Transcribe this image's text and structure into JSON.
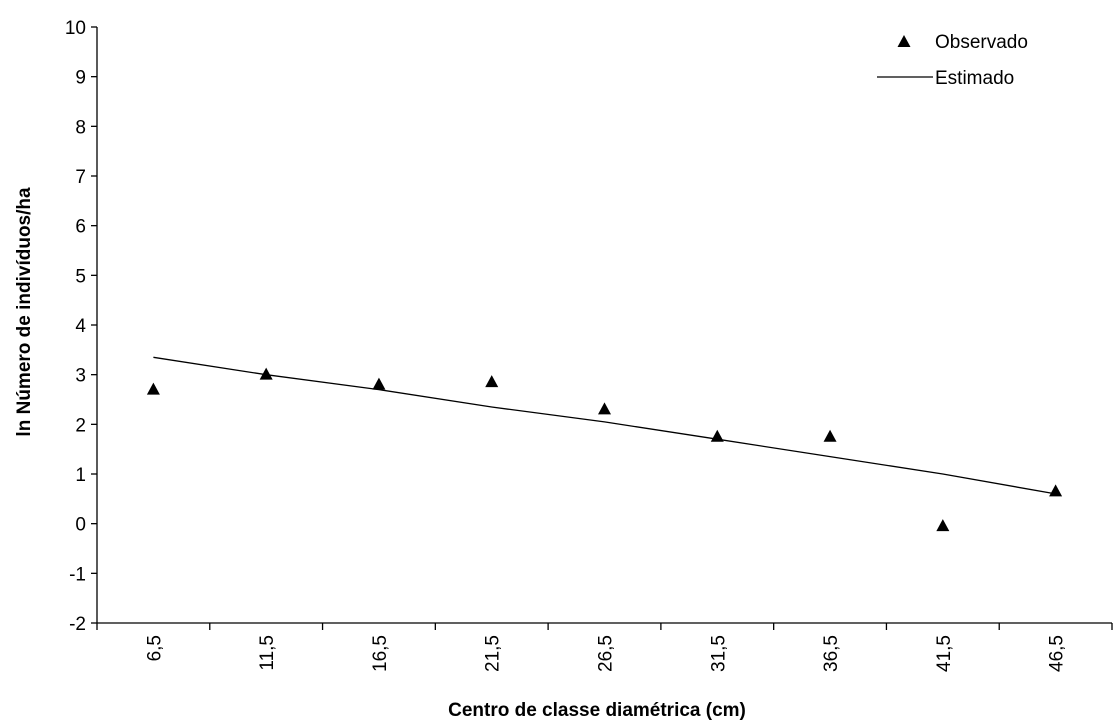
{
  "chart_data": {
    "type": "scatter",
    "xlabel": "Centro de classe diamétrica (cm)",
    "ylabel": "ln Número de indivíduos/ha",
    "categories": [
      "6,5",
      "11,5",
      "16,5",
      "21,5",
      "26,5",
      "31,5",
      "36,5",
      "41,5",
      "46,5"
    ],
    "x": [
      6.5,
      11.5,
      16.5,
      21.5,
      26.5,
      31.5,
      36.5,
      41.5,
      46.5
    ],
    "ylim": [
      -2,
      10
    ],
    "yticks": [
      "-2",
      "-1",
      "0",
      "1",
      "2",
      "3",
      "4",
      "5",
      "6",
      "7",
      "8",
      "9",
      "10"
    ],
    "grid": false,
    "legend_position": "top-right",
    "series": [
      {
        "name": "Observado",
        "marker": "triangle",
        "values": [
          2.7,
          3.0,
          2.8,
          2.85,
          2.3,
          1.75,
          1.75,
          -0.05,
          0.65
        ]
      },
      {
        "name": "Estimado",
        "style": "line",
        "values": [
          3.35,
          3.0,
          2.7,
          2.35,
          2.05,
          1.7,
          1.35,
          1.0,
          0.6
        ]
      }
    ],
    "colors": {
      "marker": "#000000",
      "line": "#000000",
      "axis": "#000000"
    }
  }
}
